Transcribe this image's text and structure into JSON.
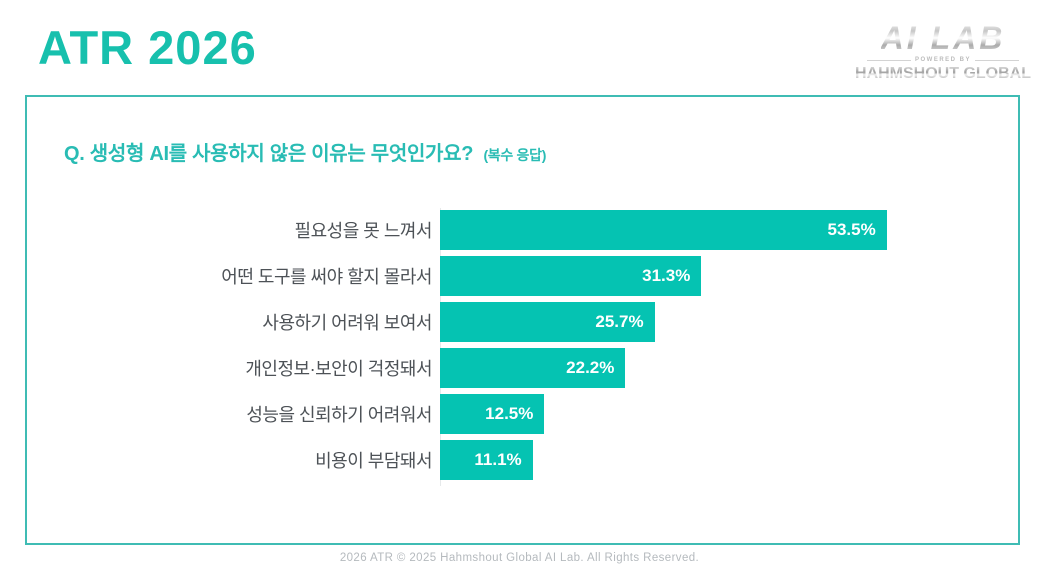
{
  "header": {
    "title": "ATR 2026",
    "logo": {
      "primary": "AI LAB",
      "powered_by": "POWERED BY",
      "secondary": "HAHMSHOUT GLOBAL"
    }
  },
  "question": {
    "text": "Q. 생성형 AI를 사용하지 않은 이유는 무엇인가요?",
    "suffix": "(복수 응답)"
  },
  "chart_data": {
    "type": "bar",
    "orientation": "horizontal",
    "title": "Q. 생성형 AI를 사용하지 않은 이유는 무엇인가요? (복수 응답)",
    "categories": [
      "필요성을 못 느껴서",
      "어떤 도구를 써야 할지 몰라서",
      "사용하기 어려워 보여서",
      "개인정보·보안이 걱정돼서",
      "성능을 신뢰하기 어려워서",
      "비용이 부담돼서"
    ],
    "values": [
      53.5,
      31.3,
      25.7,
      22.2,
      12.5,
      11.1
    ],
    "value_labels": [
      "53.5%",
      "31.3%",
      "25.7%",
      "22.2%",
      "12.5%",
      "11.1%"
    ],
    "xlabel": "",
    "ylabel": "",
    "xlim": [
      0,
      60
    ],
    "grid": false,
    "legend": false,
    "bar_color": "#05c3b2",
    "value_label_color": "#ffffff",
    "value_label_position": "inside-end"
  },
  "footer": {
    "text": "2026 ATR © 2025 Hahmshout Global AI Lab. All Rights Reserved."
  },
  "colors": {
    "accent": "#17c0ad",
    "bar": "#05c3b2",
    "box_border": "#3fbcb4",
    "question_text": "#29bcb4",
    "label_text": "#4d5257",
    "footer_text": "#b5babe"
  }
}
